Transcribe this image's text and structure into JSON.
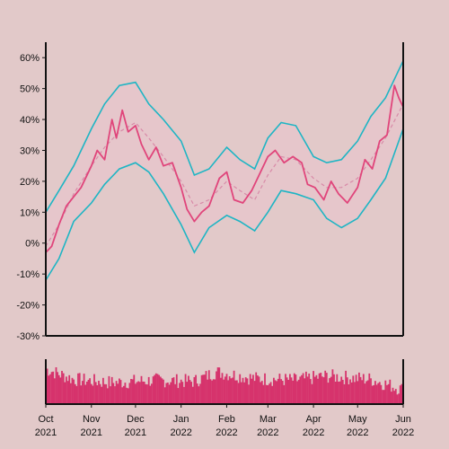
{
  "chart_data": {
    "type": "line",
    "title": "",
    "xlabel": "",
    "ylabel": "",
    "x_range": [
      "2021-10-01",
      "2022-06-01"
    ],
    "ylim": [
      -0.3,
      0.65
    ],
    "y_ticks": [
      -0.3,
      -0.2,
      -0.1,
      0.0,
      0.1,
      0.2,
      0.3,
      0.4,
      0.5,
      0.6
    ],
    "y_tick_labels": [
      "-30%",
      "-20%",
      "-10%",
      "0%",
      "10%",
      "20%",
      "30%",
      "40%",
      "50%",
      "60%"
    ],
    "x_ticks": [
      "2021-10-01",
      "2021-11-01",
      "2021-12-01",
      "2022-01-01",
      "2022-02-01",
      "2022-03-01",
      "2022-04-01",
      "2022-05-01",
      "2022-06-01"
    ],
    "x_tick_labels": [
      [
        "Oct",
        "2021"
      ],
      [
        "Nov",
        "2021"
      ],
      [
        "Dec",
        "2021"
      ],
      [
        "Jan",
        "2022"
      ],
      [
        "Feb",
        "2022"
      ],
      [
        "Mar",
        "2022"
      ],
      [
        "Apr",
        "2022"
      ],
      [
        "May",
        "2022"
      ],
      [
        "Jun",
        "2022"
      ]
    ],
    "grid": false,
    "colors": {
      "background": "#e2c9c9",
      "price_line": "#e0457b",
      "middle_band": "#d88aa8",
      "bands": "#1eb5c4",
      "band_fill": "#e8c4cc",
      "volume": "#d6336c",
      "axis": "#111111"
    },
    "series": [
      {
        "key": "middle",
        "style": "dashed",
        "points": [
          [
            "2021-10-01",
            -0.01
          ],
          [
            "2021-10-10",
            0.06
          ],
          [
            "2021-10-20",
            0.16
          ],
          [
            "2021-11-01",
            0.25
          ],
          [
            "2021-11-10",
            0.31
          ],
          [
            "2021-11-20",
            0.36
          ],
          [
            "2021-12-01",
            0.39
          ],
          [
            "2021-12-10",
            0.34
          ],
          [
            "2021-12-20",
            0.28
          ],
          [
            "2022-01-01",
            0.2
          ],
          [
            "2022-01-10",
            0.12
          ],
          [
            "2022-01-20",
            0.14
          ],
          [
            "2022-02-01",
            0.2
          ],
          [
            "2022-02-10",
            0.17
          ],
          [
            "2022-02-20",
            0.14
          ],
          [
            "2022-03-01",
            0.22
          ],
          [
            "2022-03-10",
            0.28
          ],
          [
            "2022-03-20",
            0.27
          ],
          [
            "2022-04-01",
            0.21
          ],
          [
            "2022-04-10",
            0.18
          ],
          [
            "2022-04-20",
            0.18
          ],
          [
            "2022-05-01",
            0.21
          ],
          [
            "2022-05-10",
            0.27
          ],
          [
            "2022-05-20",
            0.34
          ],
          [
            "2022-06-01",
            0.45
          ]
        ]
      },
      {
        "key": "upper",
        "style": "solid",
        "points": [
          [
            "2021-10-01",
            0.1
          ],
          [
            "2021-10-10",
            0.17
          ],
          [
            "2021-10-20",
            0.25
          ],
          [
            "2021-11-01",
            0.37
          ],
          [
            "2021-11-10",
            0.45
          ],
          [
            "2021-11-20",
            0.51
          ],
          [
            "2021-12-01",
            0.52
          ],
          [
            "2021-12-10",
            0.45
          ],
          [
            "2021-12-20",
            0.4
          ],
          [
            "2022-01-01",
            0.33
          ],
          [
            "2022-01-10",
            0.22
          ],
          [
            "2022-01-20",
            0.24
          ],
          [
            "2022-02-01",
            0.31
          ],
          [
            "2022-02-10",
            0.27
          ],
          [
            "2022-02-20",
            0.24
          ],
          [
            "2022-03-01",
            0.34
          ],
          [
            "2022-03-10",
            0.39
          ],
          [
            "2022-03-20",
            0.38
          ],
          [
            "2022-04-01",
            0.28
          ],
          [
            "2022-04-10",
            0.26
          ],
          [
            "2022-04-20",
            0.27
          ],
          [
            "2022-05-01",
            0.33
          ],
          [
            "2022-05-10",
            0.41
          ],
          [
            "2022-05-20",
            0.47
          ],
          [
            "2022-06-01",
            0.59
          ]
        ]
      },
      {
        "key": "lower",
        "style": "solid",
        "points": [
          [
            "2021-10-01",
            -0.12
          ],
          [
            "2021-10-10",
            -0.05
          ],
          [
            "2021-10-20",
            0.07
          ],
          [
            "2021-11-01",
            0.13
          ],
          [
            "2021-11-10",
            0.19
          ],
          [
            "2021-11-20",
            0.24
          ],
          [
            "2021-12-01",
            0.26
          ],
          [
            "2021-12-10",
            0.23
          ],
          [
            "2021-12-20",
            0.16
          ],
          [
            "2022-01-01",
            0.06
          ],
          [
            "2022-01-10",
            -0.03
          ],
          [
            "2022-01-20",
            0.05
          ],
          [
            "2022-02-01",
            0.09
          ],
          [
            "2022-02-10",
            0.07
          ],
          [
            "2022-02-20",
            0.04
          ],
          [
            "2022-03-01",
            0.1
          ],
          [
            "2022-03-10",
            0.17
          ],
          [
            "2022-03-20",
            0.16
          ],
          [
            "2022-04-01",
            0.14
          ],
          [
            "2022-04-10",
            0.08
          ],
          [
            "2022-04-20",
            0.05
          ],
          [
            "2022-05-01",
            0.08
          ],
          [
            "2022-05-10",
            0.14
          ],
          [
            "2022-05-20",
            0.21
          ],
          [
            "2022-06-01",
            0.37
          ]
        ]
      },
      {
        "key": "price",
        "style": "solid",
        "points": [
          [
            "2021-10-01",
            -0.03
          ],
          [
            "2021-10-05",
            -0.01
          ],
          [
            "2021-10-10",
            0.06
          ],
          [
            "2021-10-15",
            0.12
          ],
          [
            "2021-10-20",
            0.15
          ],
          [
            "2021-10-25",
            0.18
          ],
          [
            "2021-11-01",
            0.25
          ],
          [
            "2021-11-05",
            0.3
          ],
          [
            "2021-11-10",
            0.27
          ],
          [
            "2021-11-15",
            0.4
          ],
          [
            "2021-11-18",
            0.34
          ],
          [
            "2021-11-22",
            0.43
          ],
          [
            "2021-11-26",
            0.36
          ],
          [
            "2021-12-01",
            0.38
          ],
          [
            "2021-12-05",
            0.32
          ],
          [
            "2021-12-10",
            0.27
          ],
          [
            "2021-12-15",
            0.31
          ],
          [
            "2021-12-20",
            0.25
          ],
          [
            "2021-12-26",
            0.26
          ],
          [
            "2022-01-01",
            0.18
          ],
          [
            "2022-01-05",
            0.11
          ],
          [
            "2022-01-10",
            0.07
          ],
          [
            "2022-01-15",
            0.1
          ],
          [
            "2022-01-20",
            0.12
          ],
          [
            "2022-01-27",
            0.21
          ],
          [
            "2022-02-01",
            0.23
          ],
          [
            "2022-02-06",
            0.14
          ],
          [
            "2022-02-12",
            0.13
          ],
          [
            "2022-02-18",
            0.17
          ],
          [
            "2022-02-24",
            0.23
          ],
          [
            "2022-03-01",
            0.28
          ],
          [
            "2022-03-06",
            0.3
          ],
          [
            "2022-03-12",
            0.26
          ],
          [
            "2022-03-18",
            0.28
          ],
          [
            "2022-03-24",
            0.26
          ],
          [
            "2022-03-28",
            0.19
          ],
          [
            "2022-04-02",
            0.18
          ],
          [
            "2022-04-08",
            0.14
          ],
          [
            "2022-04-13",
            0.2
          ],
          [
            "2022-04-18",
            0.16
          ],
          [
            "2022-04-24",
            0.13
          ],
          [
            "2022-05-01",
            0.18
          ],
          [
            "2022-05-06",
            0.27
          ],
          [
            "2022-05-11",
            0.24
          ],
          [
            "2022-05-16",
            0.33
          ],
          [
            "2022-05-21",
            0.35
          ],
          [
            "2022-05-26",
            0.51
          ],
          [
            "2022-05-29",
            0.47
          ],
          [
            "2022-06-01",
            0.44
          ]
        ]
      }
    ],
    "volume": {
      "note_dates": [
        "2021-10-01",
        "2022-06-01"
      ],
      "level": [
        [
          "2021-10-01",
          0.85
        ],
        [
          "2021-10-20",
          0.6
        ],
        [
          "2021-11-15",
          0.52
        ],
        [
          "2021-12-15",
          0.58
        ],
        [
          "2022-01-10",
          0.55
        ],
        [
          "2022-01-25",
          0.78
        ],
        [
          "2022-02-20",
          0.62
        ],
        [
          "2022-03-20",
          0.58
        ],
        [
          "2022-04-10",
          0.68
        ],
        [
          "2022-05-10",
          0.6
        ],
        [
          "2022-06-01",
          0.35
        ]
      ]
    }
  }
}
